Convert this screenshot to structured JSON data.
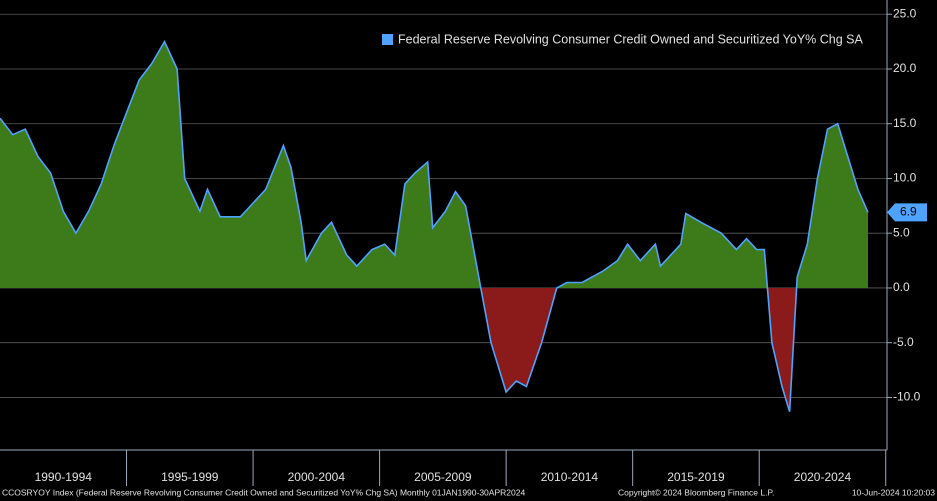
{
  "chart_data": {
    "type": "area",
    "series": [
      {
        "name": "Federal Reserve Revolving Consumer Credit Owned and Securitized YoY% Chg SA",
        "color": "#4ea3ff",
        "x": [
          1990.0,
          1990.5,
          1991.0,
          1991.5,
          1992.0,
          1992.5,
          1993.0,
          1993.5,
          1994.0,
          1994.5,
          1995.0,
          1995.5,
          1996.0,
          1996.5,
          1997.0,
          1997.3,
          1997.9,
          1998.2,
          1998.7,
          1999.5,
          1999.7,
          2000.5,
          2001.2,
          2001.5,
          2001.9,
          2002.1,
          2002.7,
          2003.1,
          2003.7,
          2004.1,
          2004.7,
          2005.2,
          2005.6,
          2006.0,
          2006.4,
          2006.9,
          2007.1,
          2007.6,
          2008.0,
          2008.4,
          2009.0,
          2009.4,
          2010.0,
          2010.4,
          2010.8,
          2011.4,
          2012.0,
          2012.4,
          2013.0,
          2013.8,
          2014.4,
          2014.8,
          2015.3,
          2015.9,
          2016.1,
          2016.9,
          2017.1,
          2017.7,
          2018.5,
          2019.1,
          2019.5,
          2019.9,
          2020.2,
          2020.5,
          2020.9,
          2021.2,
          2021.5,
          2021.9,
          2022.3,
          2022.7,
          2023.1,
          2023.5,
          2023.9,
          2024.3
        ],
        "values": [
          15.5,
          14.0,
          14.5,
          12.0,
          10.5,
          7.0,
          5.0,
          7.0,
          9.5,
          13.0,
          16.0,
          19.0,
          20.5,
          22.5,
          20.0,
          10.0,
          7.0,
          9.0,
          6.5,
          6.5,
          7.0,
          9.0,
          13.0,
          11.0,
          6.0,
          2.5,
          5.0,
          6.0,
          3.0,
          2.0,
          3.5,
          4.0,
          3.0,
          9.5,
          10.5,
          11.5,
          5.5,
          7.0,
          8.8,
          7.5,
          0.0,
          -5.0,
          -9.5,
          -8.5,
          -9.0,
          -5.0,
          0.0,
          0.5,
          0.5,
          1.5,
          2.5,
          4.0,
          2.5,
          4.0,
          2.0,
          4.0,
          6.8,
          6.0,
          5.0,
          3.5,
          4.5,
          3.5,
          3.5,
          -5.0,
          -9.0,
          -11.3,
          1.0,
          4.0,
          10.0,
          14.5,
          15.0,
          12.0,
          9.0,
          6.9
        ]
      }
    ],
    "xlim": [
      1990,
      2025.05
    ],
    "xticks": [
      {
        "value": 1992.5,
        "label": "1990-1994"
      },
      {
        "value": 1997.5,
        "label": "1995-1999"
      },
      {
        "value": 2002.5,
        "label": "2000-2004"
      },
      {
        "value": 2007.5,
        "label": "2005-2009"
      },
      {
        "value": 2012.5,
        "label": "2010-2014"
      },
      {
        "value": 2017.5,
        "label": "2015-2019"
      },
      {
        "value": 2022.5,
        "label": "2020-2024"
      }
    ],
    "ylim": [
      -14.8,
      26.3
    ],
    "yticks": [
      {
        "value": 25,
        "label": "25.0"
      },
      {
        "value": 20,
        "label": "20.0"
      },
      {
        "value": 15,
        "label": "15.0"
      },
      {
        "value": 10,
        "label": "10.0"
      },
      {
        "value": 5,
        "label": "5.0"
      },
      {
        "value": 0,
        "label": "0.0"
      },
      {
        "value": -5,
        "label": "-5.0"
      },
      {
        "value": -10,
        "label": "-10.0"
      }
    ],
    "grid": true,
    "legend": "upper right",
    "positive_fill": "#3d7a1a",
    "negative_fill": "#8b1a1a",
    "source": "CCOSRYOY Index (Federal Reserve Revolving Consumer Credit Owned and Securitized YoY% Chg SA)  Monthly 01JAN1990-30APR2024",
    "copyright": "Copyright© 2024 Bloomberg Finance L.P.",
    "timestamp": "10-Jun-2024 10:20:03"
  }
}
